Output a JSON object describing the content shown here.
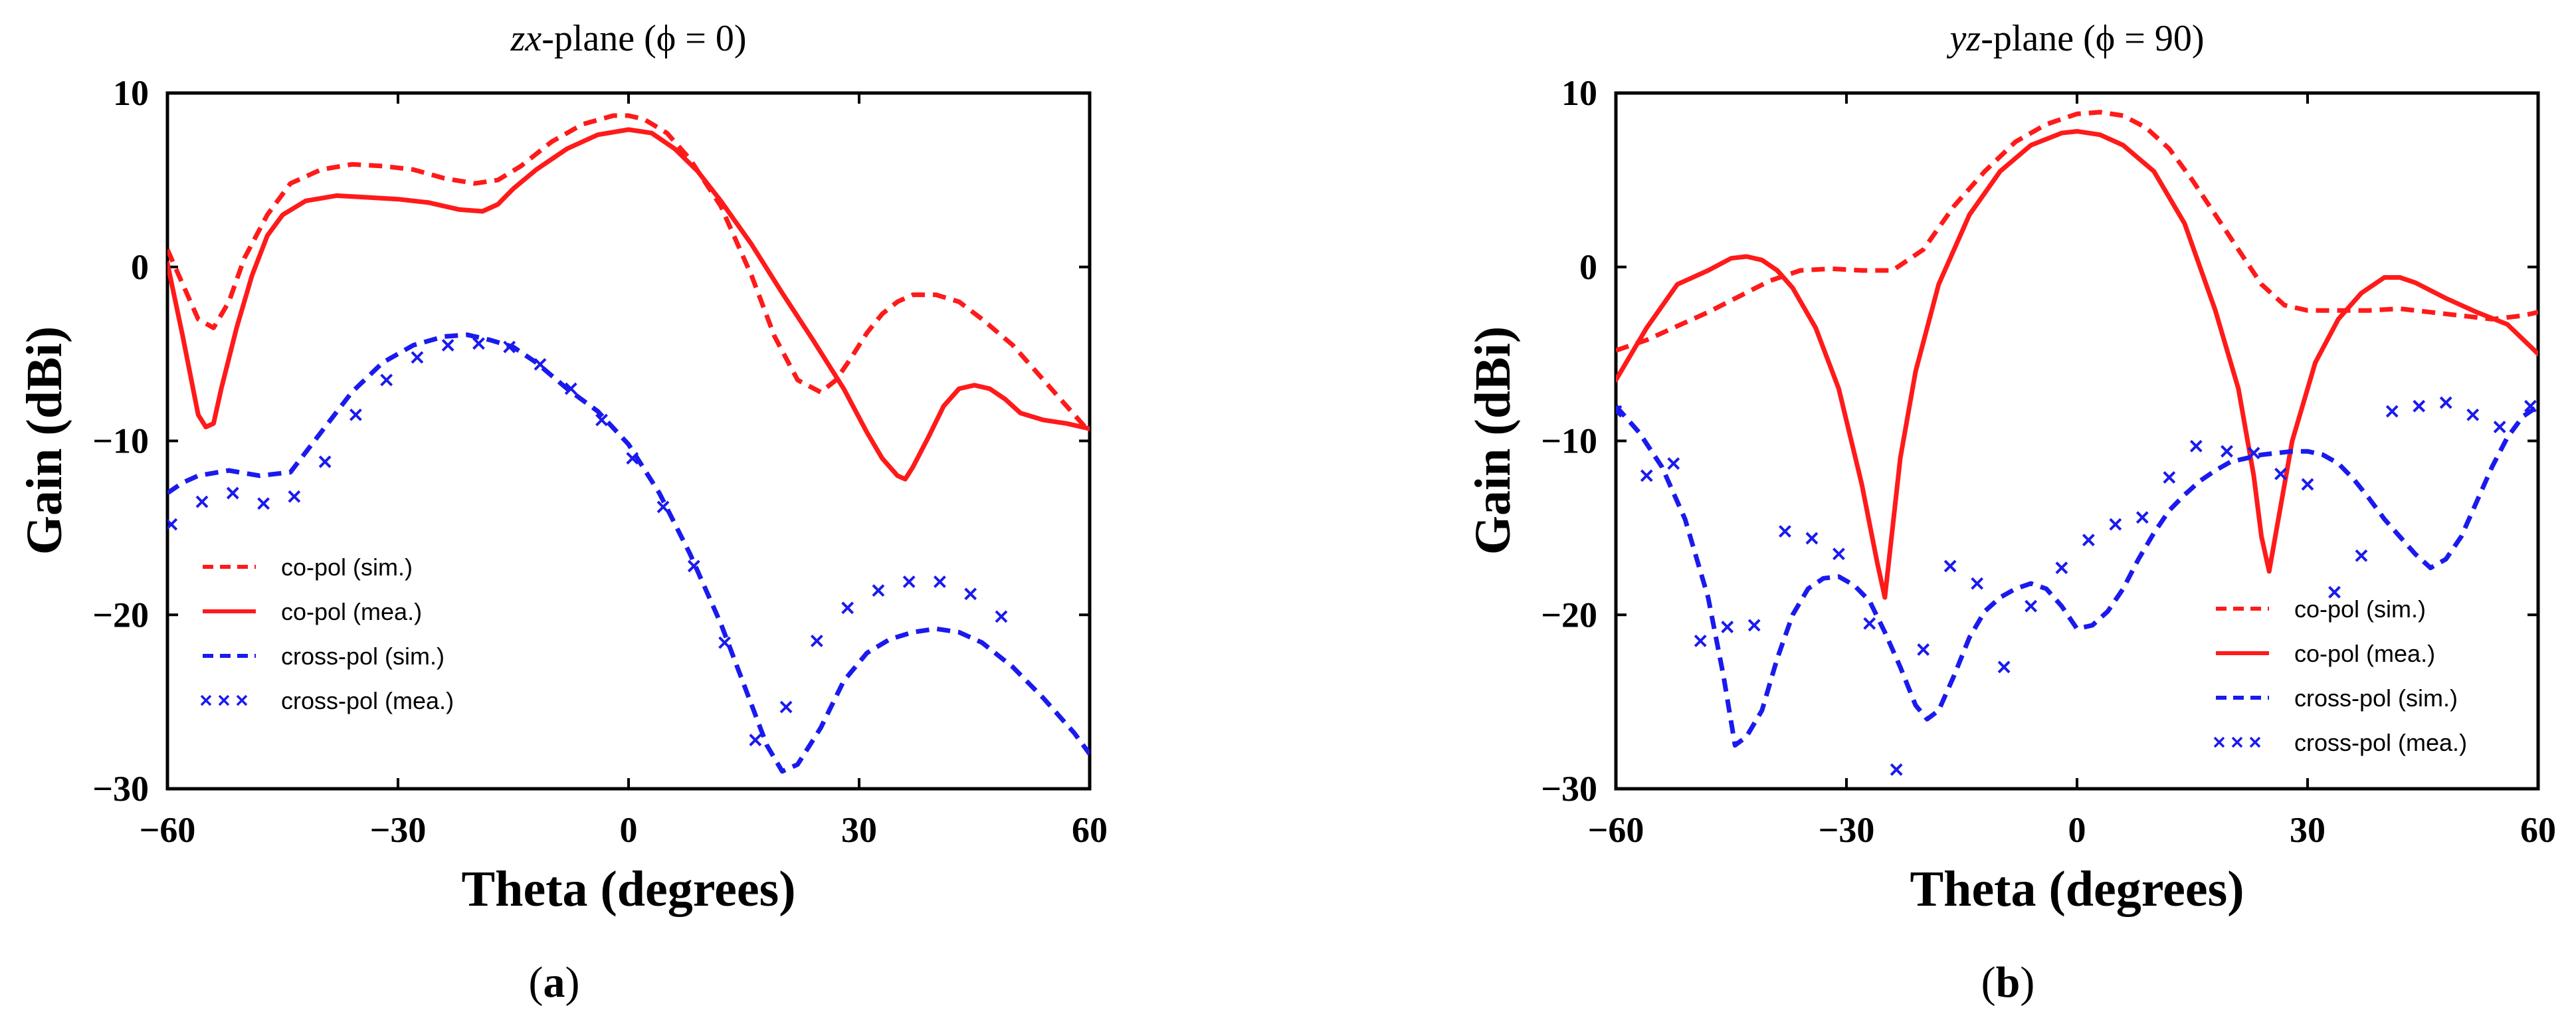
{
  "chart_data": [
    {
      "type": "line",
      "panel": "a",
      "caption": "a",
      "title_italic": "zx",
      "title_rest": "-plane (ϕ = 0)",
      "xlabel": "Theta (degrees)",
      "ylabel": "Gain (dBi)",
      "xlim": [
        -60,
        60
      ],
      "ylim": [
        -30,
        10
      ],
      "xticks": [
        -60,
        -30,
        0,
        30,
        60
      ],
      "yticks": [
        10,
        0,
        -10,
        -20,
        -30
      ],
      "legend_position": "bottom-left",
      "series": [
        {
          "name": "co-pol (sim.)",
          "style": "dashed",
          "color": "#ff1a1a",
          "x": [
            -60,
            -58,
            -56,
            -54,
            -52,
            -50,
            -47,
            -44,
            -40,
            -36,
            -32,
            -28,
            -24,
            -20,
            -17,
            -14,
            -10,
            -6,
            -2,
            0,
            2,
            5,
            8,
            12,
            16,
            19,
            22,
            25,
            27,
            29,
            31,
            33,
            35,
            37,
            40,
            43,
            46,
            50,
            54,
            58,
            60
          ],
          "y": [
            1.0,
            -1.0,
            -3.0,
            -3.5,
            -2.0,
            0.5,
            3.0,
            4.8,
            5.6,
            5.9,
            5.8,
            5.6,
            5.1,
            4.8,
            5.0,
            5.8,
            7.2,
            8.2,
            8.7,
            8.7,
            8.5,
            7.7,
            6.2,
            3.5,
            -0.5,
            -4.0,
            -6.5,
            -7.2,
            -6.5,
            -5.2,
            -3.8,
            -2.7,
            -2.0,
            -1.6,
            -1.6,
            -2.0,
            -3.0,
            -4.5,
            -6.5,
            -8.5,
            -9.5
          ]
        },
        {
          "name": "co-pol (mea.)",
          "style": "solid",
          "color": "#ff1a1a",
          "x": [
            -60,
            -58,
            -56,
            -55,
            -54,
            -53,
            -51,
            -49,
            -47,
            -45,
            -42,
            -38,
            -34,
            -30,
            -26,
            -22,
            -19,
            -17,
            -15,
            -12,
            -8,
            -4,
            0,
            3,
            6,
            9,
            12,
            16,
            20,
            24,
            28,
            31,
            33,
            35,
            36,
            37,
            39,
            41,
            43,
            45,
            47,
            49,
            51,
            54,
            57,
            60
          ],
          "y": [
            0.2,
            -4.0,
            -8.5,
            -9.2,
            -9.0,
            -7.0,
            -3.5,
            -0.5,
            1.8,
            3.0,
            3.8,
            4.1,
            4.0,
            3.9,
            3.7,
            3.3,
            3.2,
            3.6,
            4.5,
            5.6,
            6.8,
            7.6,
            7.9,
            7.7,
            6.8,
            5.5,
            3.8,
            1.3,
            -1.5,
            -4.2,
            -7.0,
            -9.5,
            -11.0,
            -12.0,
            -12.2,
            -11.5,
            -9.8,
            -8.0,
            -7.0,
            -6.8,
            -7.0,
            -7.6,
            -8.4,
            -8.8,
            -9.0,
            -9.3
          ]
        },
        {
          "name": "cross-pol (sim.)",
          "style": "dashed",
          "color": "#1a1aee",
          "x": [
            -60,
            -58,
            -56,
            -52,
            -48,
            -44,
            -40,
            -36,
            -32,
            -28,
            -24,
            -21,
            -18,
            -15,
            -12,
            -8,
            -4,
            0,
            4,
            8,
            12,
            15,
            18,
            20,
            22,
            25,
            28,
            31,
            34,
            37,
            40,
            43,
            46,
            50,
            54,
            58,
            60
          ],
          "y": [
            -13.0,
            -12.4,
            -12.0,
            -11.7,
            -12.0,
            -11.8,
            -9.5,
            -7.2,
            -5.5,
            -4.5,
            -4.0,
            -3.9,
            -4.2,
            -4.6,
            -5.5,
            -7.0,
            -8.3,
            -10.2,
            -13.0,
            -16.5,
            -20.5,
            -24.0,
            -27.5,
            -29.0,
            -28.6,
            -26.5,
            -23.8,
            -22.2,
            -21.4,
            -21.0,
            -20.8,
            -21.0,
            -21.6,
            -23.0,
            -24.8,
            -26.8,
            -28.0
          ]
        },
        {
          "name": "cross-pol (mea.)",
          "style": "markers",
          "color": "#1a1aee",
          "x": [
            -59.5,
            -55.5,
            -51.5,
            -47.5,
            -43.5,
            -39.5,
            -35.5,
            -31.5,
            -27.5,
            -23.5,
            -19.5,
            -15.5,
            -11.5,
            -7.5,
            -3.5,
            0.5,
            4.5,
            8.5,
            12.5,
            16.5,
            20.5,
            24.5,
            28.5,
            32.5,
            36.5,
            40.5,
            44.5,
            48.5
          ],
          "y": [
            -14.8,
            -13.5,
            -13.0,
            -13.6,
            -13.2,
            -11.2,
            -8.5,
            -6.5,
            -5.2,
            -4.5,
            -4.4,
            -4.6,
            -5.6,
            -7.0,
            -8.8,
            -11.0,
            -13.8,
            -17.2,
            -21.6,
            -27.2,
            -25.3,
            -21.5,
            -19.6,
            -18.6,
            -18.1,
            -18.1,
            -18.8,
            -20.1
          ]
        }
      ]
    },
    {
      "type": "line",
      "panel": "b",
      "caption": "b",
      "title_italic": "yz",
      "title_rest": "-plane (ϕ = 90)",
      "xlabel": "Theta (degrees)",
      "ylabel": "Gain (dBi)",
      "xlim": [
        -60,
        60
      ],
      "ylim": [
        -30,
        10
      ],
      "xticks": [
        -60,
        -30,
        0,
        30,
        60
      ],
      "yticks": [
        10,
        0,
        -10,
        -20,
        -30
      ],
      "legend_position": "bottom-right",
      "series": [
        {
          "name": "co-pol (sim.)",
          "style": "dashed",
          "color": "#ff1a1a",
          "x": [
            -60,
            -56,
            -52,
            -48,
            -44,
            -40,
            -36,
            -32,
            -28,
            -24,
            -20,
            -16,
            -12,
            -8,
            -4,
            0,
            3,
            6,
            9,
            12,
            15,
            18,
            21,
            24,
            27,
            30,
            34,
            38,
            42,
            46,
            50,
            54,
            58,
            60
          ],
          "y": [
            -4.8,
            -4.2,
            -3.4,
            -2.6,
            -1.7,
            -0.8,
            -0.2,
            -0.1,
            -0.2,
            -0.2,
            1.0,
            3.5,
            5.5,
            7.2,
            8.2,
            8.8,
            8.9,
            8.7,
            8.0,
            6.8,
            5.0,
            3.0,
            1.0,
            -1.0,
            -2.2,
            -2.5,
            -2.5,
            -2.5,
            -2.4,
            -2.6,
            -2.8,
            -3.0,
            -2.8,
            -2.6
          ]
        },
        {
          "name": "co-pol (mea.)",
          "style": "solid",
          "color": "#ff1a1a",
          "x": [
            -60,
            -56,
            -52,
            -48,
            -45,
            -43,
            -41,
            -39,
            -37,
            -34,
            -31,
            -28,
            -26,
            -25,
            -24,
            -23,
            -21,
            -18,
            -14,
            -10,
            -6,
            -2,
            0,
            3,
            6,
            10,
            14,
            18,
            21,
            23,
            24,
            25,
            26,
            28,
            31,
            34,
            37,
            40,
            42,
            44,
            48,
            52,
            56,
            60
          ],
          "y": [
            -6.5,
            -3.5,
            -1.0,
            -0.2,
            0.5,
            0.6,
            0.4,
            -0.2,
            -1.2,
            -3.5,
            -7.0,
            -12.5,
            -17.0,
            -19.0,
            -15.0,
            -11.0,
            -6.0,
            -1.0,
            3.0,
            5.5,
            7.0,
            7.7,
            7.8,
            7.6,
            7.0,
            5.5,
            2.5,
            -2.5,
            -7.0,
            -12.0,
            -15.5,
            -17.5,
            -15.0,
            -10.0,
            -5.5,
            -3.0,
            -1.5,
            -0.6,
            -0.6,
            -0.9,
            -1.8,
            -2.6,
            -3.3,
            -5.0
          ]
        },
        {
          "name": "cross-pol (sim.)",
          "style": "dashed",
          "color": "#1a1aee",
          "x": [
            -60,
            -57,
            -54,
            -51,
            -48,
            -46,
            -44.5,
            -43,
            -41,
            -39,
            -37,
            -35,
            -33,
            -31,
            -29,
            -27,
            -25,
            -23,
            -21,
            -19.5,
            -18,
            -16,
            -14,
            -12,
            -10,
            -8,
            -6,
            -4,
            -2,
            0,
            2,
            4,
            6,
            8,
            10,
            12,
            14,
            16,
            18,
            20,
            22,
            24,
            26,
            28,
            30,
            32,
            34,
            36,
            38,
            40,
            42,
            44,
            46,
            48,
            50,
            52,
            54,
            56,
            58,
            60
          ],
          "y": [
            -8.0,
            -9.5,
            -11.5,
            -14.5,
            -19.0,
            -23.5,
            -27.5,
            -27.0,
            -25.5,
            -22.5,
            -20.0,
            -18.5,
            -17.9,
            -17.8,
            -18.3,
            -19.2,
            -21.0,
            -23.0,
            -25.2,
            -26.0,
            -25.5,
            -23.5,
            -21.3,
            -19.8,
            -19.0,
            -18.5,
            -18.2,
            -18.5,
            -19.5,
            -20.8,
            -20.6,
            -19.8,
            -18.5,
            -16.8,
            -15.3,
            -14.0,
            -13.1,
            -12.3,
            -11.7,
            -11.2,
            -11.0,
            -10.8,
            -10.7,
            -10.6,
            -10.6,
            -10.8,
            -11.3,
            -12.2,
            -13.3,
            -14.5,
            -15.5,
            -16.5,
            -17.3,
            -16.8,
            -15.5,
            -13.5,
            -11.5,
            -9.8,
            -8.6,
            -8.0
          ]
        },
        {
          "name": "cross-pol (mea.)",
          "style": "markers",
          "color": "#1a1aee",
          "x": [
            -60,
            -56,
            -52.5,
            -49,
            -45.5,
            -42,
            -38,
            -34.5,
            -31,
            -27,
            -23.5,
            -20,
            -16.5,
            -13,
            -9.5,
            -6,
            -2,
            1.5,
            5,
            8.5,
            12,
            15.5,
            19.5,
            23,
            26.5,
            30,
            33.5,
            37,
            41,
            44.5,
            48,
            51.5,
            55,
            59
          ],
          "y": [
            -8.3,
            -12.0,
            -11.3,
            -21.5,
            -20.7,
            -20.6,
            -15.2,
            -15.6,
            -16.5,
            -20.5,
            -28.9,
            -22.0,
            -17.2,
            -18.2,
            -23.0,
            -19.5,
            -17.3,
            -15.7,
            -14.8,
            -14.4,
            -12.1,
            -10.3,
            -10.6,
            -10.7,
            -11.9,
            -12.5,
            -18.7,
            -16.6,
            -8.3,
            -8.0,
            -7.8,
            -8.5,
            -9.2,
            -8.0
          ]
        }
      ]
    }
  ]
}
